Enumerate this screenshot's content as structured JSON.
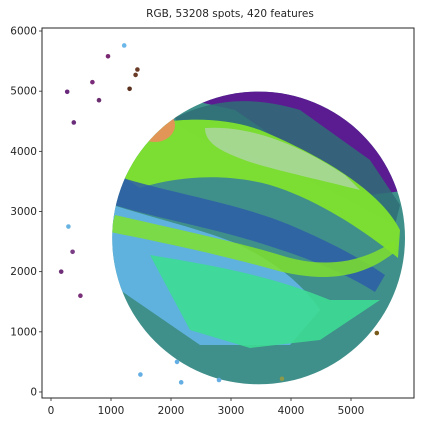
{
  "chart_data": {
    "type": "scatter",
    "title": "RGB, 53208 spots, 420 features",
    "xlabel": "",
    "ylabel": "",
    "xlim": [
      -150,
      6050
    ],
    "ylim": [
      -100,
      6050
    ],
    "x_ticks": [
      0,
      1000,
      2000,
      3000,
      4000,
      5000
    ],
    "y_ticks": [
      0,
      1000,
      2000,
      3000,
      4000,
      5000,
      6000
    ],
    "grid": false,
    "legend": "none",
    "tissue_region": {
      "shape": "circle",
      "center": [
        3460,
        2560
      ],
      "radius": 2440,
      "base_color": "#3f8f8a"
    },
    "bands": [
      {
        "region": "upper-right",
        "color": "#5d1591"
      },
      {
        "region": "top",
        "color": "#7a4a22"
      },
      {
        "region": "upper-left patch",
        "color": "#e7915a"
      },
      {
        "region": "inner arc",
        "color": "#a9d79a"
      },
      {
        "region": "main arc",
        "color": "#7fe12d"
      },
      {
        "region": "blue arc",
        "color": "#2e5ea8"
      },
      {
        "region": "lower-left",
        "color": "#63b6e6"
      },
      {
        "region": "lower",
        "color": "#3ddc94"
      }
    ],
    "outlier_points": [
      {
        "x": 1220,
        "y": 5760,
        "color": "#6bb7ea"
      },
      {
        "x": 950,
        "y": 5580,
        "color": "#7a2a72"
      },
      {
        "x": 270,
        "y": 4990,
        "color": "#6a2a7c"
      },
      {
        "x": 690,
        "y": 5150,
        "color": "#7a2c7a"
      },
      {
        "x": 800,
        "y": 4850,
        "color": "#6b2f6f"
      },
      {
        "x": 380,
        "y": 4480,
        "color": "#6a2d7a"
      },
      {
        "x": 1410,
        "y": 5270,
        "color": "#6a3c27"
      },
      {
        "x": 1440,
        "y": 5360,
        "color": "#6a3c27"
      },
      {
        "x": 1310,
        "y": 5040,
        "color": "#5b2f1e"
      },
      {
        "x": 290,
        "y": 2750,
        "color": "#69b3e3"
      },
      {
        "x": 360,
        "y": 2330,
        "color": "#7a3d86"
      },
      {
        "x": 170,
        "y": 2000,
        "color": "#6e2f78"
      },
      {
        "x": 490,
        "y": 1600,
        "color": "#7a2f7a"
      },
      {
        "x": 1490,
        "y": 290,
        "color": "#64aee3"
      },
      {
        "x": 2100,
        "y": 500,
        "color": "#64aee3"
      },
      {
        "x": 2170,
        "y": 160,
        "color": "#64aee3"
      },
      {
        "x": 2800,
        "y": 200,
        "color": "#64aee3"
      },
      {
        "x": 3850,
        "y": 220,
        "color": "#8b9a4a"
      },
      {
        "x": 5430,
        "y": 980,
        "color": "#7a5a1a"
      }
    ]
  }
}
